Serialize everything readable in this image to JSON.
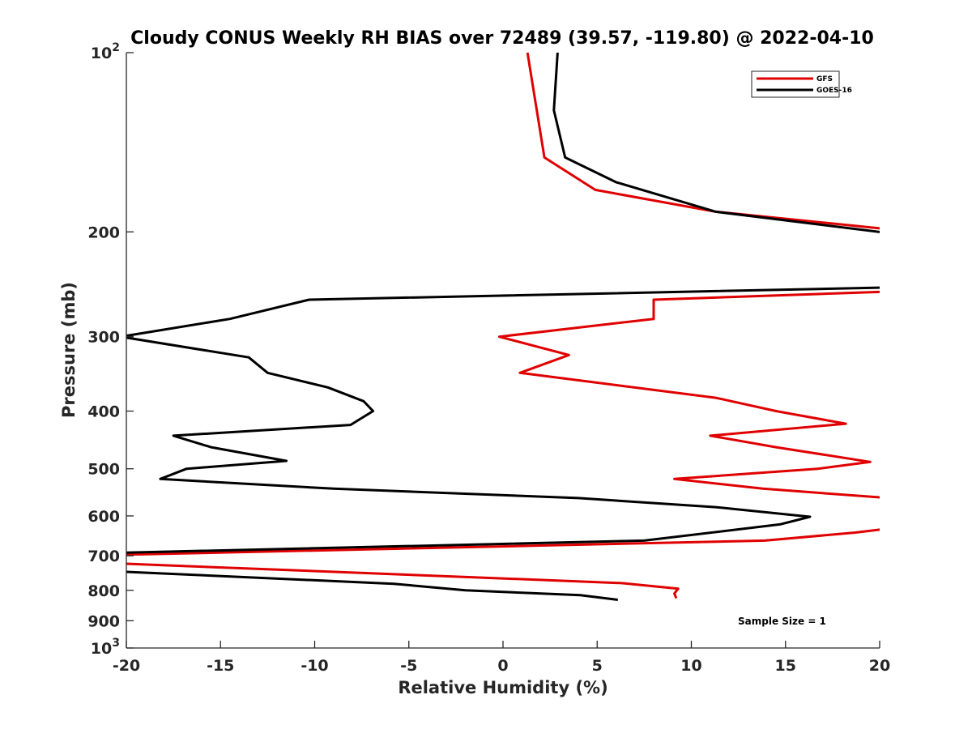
{
  "chart_data": {
    "type": "line",
    "title": "Cloudy CONUS Weekly RH BIAS over 72489 (39.57, -119.80) @ 2022-04-10",
    "xlabel": "Relative Humidity (%)",
    "ylabel": "Pressure (mb)",
    "xlim": [
      -20,
      20
    ],
    "ylim": [
      100,
      1000
    ],
    "y_scale": "log",
    "y_reversed": true,
    "x_ticks": [
      "-20",
      "-15",
      "-10",
      "-5",
      "0",
      "5",
      "10",
      "15",
      "20"
    ],
    "y_ticks": [
      {
        "value": 100,
        "label": "10",
        "sup": "2"
      },
      {
        "value": 200,
        "label": "200",
        "sup": ""
      },
      {
        "value": 300,
        "label": "300",
        "sup": ""
      },
      {
        "value": 400,
        "label": "400",
        "sup": ""
      },
      {
        "value": 500,
        "label": "500",
        "sup": ""
      },
      {
        "value": 600,
        "label": "600",
        "sup": ""
      },
      {
        "value": 700,
        "label": "700",
        "sup": ""
      },
      {
        "value": 800,
        "label": "800",
        "sup": ""
      },
      {
        "value": 900,
        "label": "900",
        "sup": ""
      },
      {
        "value": 1000,
        "label": "10",
        "sup": "3"
      }
    ],
    "legend_position": "top-right",
    "grid": false,
    "annotation": "Sample Size = 1",
    "series": [
      {
        "name": "GFS",
        "color": "#e00000",
        "points": [
          {
            "x": 1.3,
            "y": 100
          },
          {
            "x": 2.2,
            "y": 150
          },
          {
            "x": 4.9,
            "y": 170
          },
          {
            "x": 11.3,
            "y": 185
          },
          {
            "x": 20.5,
            "y": 198
          },
          {
            "x": null,
            "y": null
          },
          {
            "x": 20.5,
            "y": 252
          },
          {
            "x": 8.0,
            "y": 260
          },
          {
            "x": 8.0,
            "y": 280
          },
          {
            "x": -0.2,
            "y": 300
          },
          {
            "x": 3.5,
            "y": 322
          },
          {
            "x": 0.9,
            "y": 345
          },
          {
            "x": 11.3,
            "y": 380
          },
          {
            "x": 14.5,
            "y": 400
          },
          {
            "x": 18.2,
            "y": 420
          },
          {
            "x": 11.0,
            "y": 440
          },
          {
            "x": 14.5,
            "y": 460
          },
          {
            "x": 19.5,
            "y": 487
          },
          {
            "x": 16.7,
            "y": 500
          },
          {
            "x": 9.1,
            "y": 520
          },
          {
            "x": 13.8,
            "y": 540
          },
          {
            "x": 20.5,
            "y": 560
          },
          {
            "x": null,
            "y": null
          },
          {
            "x": 20.5,
            "y": 630
          },
          {
            "x": 18.7,
            "y": 640
          },
          {
            "x": 13.9,
            "y": 660
          },
          {
            "x": -20,
            "y": 697
          },
          {
            "x": null,
            "y": null
          },
          {
            "x": -20,
            "y": 722
          },
          {
            "x": -1.0,
            "y": 762
          },
          {
            "x": 6.3,
            "y": 778
          },
          {
            "x": 9.3,
            "y": 795
          },
          {
            "x": 9.1,
            "y": 810
          },
          {
            "x": 9.2,
            "y": 825
          }
        ]
      },
      {
        "name": "GOES-16",
        "color": "#000000",
        "points": [
          {
            "x": 2.9,
            "y": 100
          },
          {
            "x": 2.7,
            "y": 125
          },
          {
            "x": 3.3,
            "y": 150
          },
          {
            "x": 6.0,
            "y": 165
          },
          {
            "x": 11.3,
            "y": 185
          },
          {
            "x": 20.5,
            "y": 201
          },
          {
            "x": null,
            "y": null
          },
          {
            "x": 20.5,
            "y": 248
          },
          {
            "x": -10.3,
            "y": 260
          },
          {
            "x": -14.5,
            "y": 280
          },
          {
            "x": -20.3,
            "y": 300
          },
          {
            "x": -13.5,
            "y": 325
          },
          {
            "x": -12.5,
            "y": 345
          },
          {
            "x": -9.3,
            "y": 365
          },
          {
            "x": -7.4,
            "y": 385
          },
          {
            "x": -6.9,
            "y": 400
          },
          {
            "x": -8.1,
            "y": 422
          },
          {
            "x": -17.5,
            "y": 440
          },
          {
            "x": -15.5,
            "y": 460
          },
          {
            "x": -11.5,
            "y": 485
          },
          {
            "x": -16.8,
            "y": 500
          },
          {
            "x": -18.2,
            "y": 520
          },
          {
            "x": -9.0,
            "y": 540
          },
          {
            "x": 4.0,
            "y": 560
          },
          {
            "x": 11.3,
            "y": 580
          },
          {
            "x": 16.3,
            "y": 602
          },
          {
            "x": 14.7,
            "y": 620
          },
          {
            "x": 7.5,
            "y": 660
          },
          {
            "x": -20.5,
            "y": 692
          },
          {
            "x": null,
            "y": null
          },
          {
            "x": -20,
            "y": 745
          },
          {
            "x": -5.8,
            "y": 780
          },
          {
            "x": -2.0,
            "y": 800
          },
          {
            "x": 4.1,
            "y": 815
          },
          {
            "x": 6.1,
            "y": 830
          }
        ]
      }
    ]
  }
}
